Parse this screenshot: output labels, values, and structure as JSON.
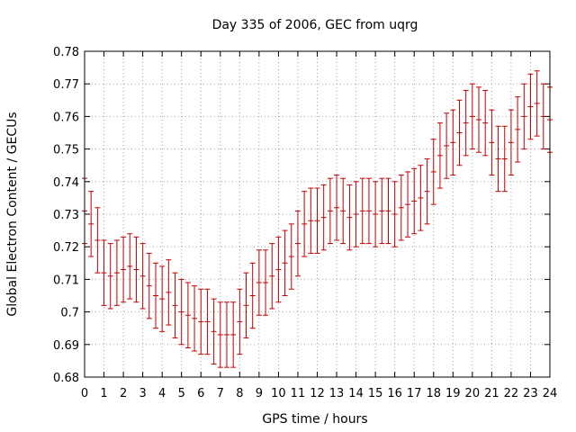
{
  "chart_data": {
    "type": "errorbar",
    "title": "Day 335 of 2006, GEC from uqrg",
    "xlabel": "GPS time / hours",
    "ylabel": "Global Electron Content / GECUs",
    "xlim": [
      0,
      24
    ],
    "ylim": [
      0.68,
      0.78
    ],
    "xticks": [
      "0",
      "1",
      "2",
      "3",
      "4",
      "5",
      "6",
      "7",
      "8",
      "9",
      "10",
      "11",
      "12",
      "13",
      "14",
      "15",
      "16",
      "17",
      "18",
      "19",
      "20",
      "21",
      "22",
      "23",
      "24"
    ],
    "yticks": [
      "0.68",
      "0.69",
      "0.7",
      "0.71",
      "0.72",
      "0.73",
      "0.74",
      "0.75",
      "0.76",
      "0.77",
      "0.78"
    ],
    "grid": true,
    "color": "#c00000",
    "x": [
      0,
      0.333,
      0.667,
      1,
      1.333,
      1.667,
      2,
      2.333,
      2.667,
      3,
      3.333,
      3.667,
      4,
      4.333,
      4.667,
      5,
      5.333,
      5.667,
      6,
      6.333,
      6.667,
      7,
      7.333,
      7.667,
      8,
      8.333,
      8.667,
      9,
      9.333,
      9.667,
      10,
      10.333,
      10.667,
      11,
      11.333,
      11.667,
      12,
      12.333,
      12.667,
      13,
      13.333,
      13.667,
      14,
      14.333,
      14.667,
      15,
      15.333,
      15.667,
      16,
      16.333,
      16.667,
      17,
      17.333,
      17.667,
      18,
      18.333,
      18.667,
      19,
      19.333,
      19.667,
      20,
      20.333,
      20.667,
      21,
      21.333,
      21.667,
      22,
      22.333,
      22.667,
      23,
      23.333,
      23.667,
      24
    ],
    "y": [
      0.731,
      0.727,
      0.722,
      0.712,
      0.711,
      0.712,
      0.713,
      0.714,
      0.713,
      0.711,
      0.708,
      0.705,
      0.704,
      0.706,
      0.702,
      0.7,
      0.699,
      0.698,
      0.697,
      0.697,
      0.694,
      0.693,
      0.693,
      0.693,
      0.697,
      0.702,
      0.705,
      0.709,
      0.709,
      0.711,
      0.713,
      0.715,
      0.717,
      0.721,
      0.727,
      0.728,
      0.728,
      0.729,
      0.731,
      0.732,
      0.731,
      0.729,
      0.73,
      0.731,
      0.731,
      0.73,
      0.731,
      0.731,
      0.73,
      0.732,
      0.733,
      0.734,
      0.735,
      0.737,
      0.743,
      0.748,
      0.751,
      0.752,
      0.755,
      0.758,
      0.76,
      0.759,
      0.758,
      0.752,
      0.747,
      0.747,
      0.752,
      0.756,
      0.76,
      0.763,
      0.764,
      0.76,
      0.759
    ],
    "err": [
      0.01,
      0.01,
      0.01,
      0.01,
      0.01,
      0.01,
      0.01,
      0.01,
      0.01,
      0.01,
      0.01,
      0.01,
      0.01,
      0.01,
      0.01,
      0.01,
      0.01,
      0.01,
      0.01,
      0.01,
      0.01,
      0.01,
      0.01,
      0.01,
      0.01,
      0.01,
      0.01,
      0.01,
      0.01,
      0.01,
      0.01,
      0.01,
      0.01,
      0.01,
      0.01,
      0.01,
      0.01,
      0.01,
      0.01,
      0.01,
      0.01,
      0.01,
      0.01,
      0.01,
      0.01,
      0.01,
      0.01,
      0.01,
      0.01,
      0.01,
      0.01,
      0.01,
      0.01,
      0.01,
      0.01,
      0.01,
      0.01,
      0.01,
      0.01,
      0.01,
      0.01,
      0.01,
      0.01,
      0.01,
      0.01,
      0.01,
      0.01,
      0.01,
      0.01,
      0.01,
      0.01,
      0.01,
      0.01
    ]
  }
}
